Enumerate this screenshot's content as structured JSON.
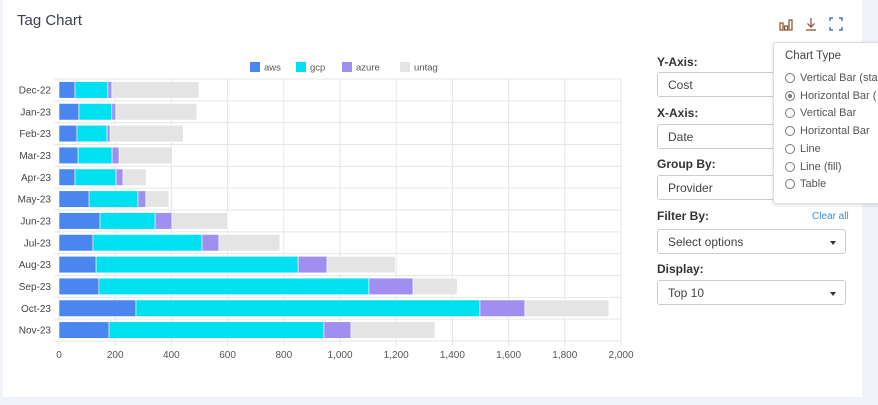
{
  "header": {
    "title": "Tag Chart",
    "icons": [
      "bar-chart-icon",
      "download-icon",
      "fullscreen-icon"
    ]
  },
  "controls": {
    "y_axis": {
      "label": "Y-Axis:",
      "value": "Cost"
    },
    "x_axis": {
      "label": "X-Axis:",
      "value": "Date"
    },
    "group_by": {
      "label": "Group By:",
      "value": "Provider"
    },
    "filter_by": {
      "label": "Filter By:",
      "value": "Select options",
      "clear": "Clear all"
    },
    "display": {
      "label": "Display:",
      "value": "Top 10"
    }
  },
  "chart_type_menu": {
    "title": "Chart Type",
    "options": [
      {
        "label": "Vertical Bar (sta",
        "selected": false
      },
      {
        "label": "Horizontal Bar (",
        "selected": true
      },
      {
        "label": "Vertical Bar",
        "selected": false
      },
      {
        "label": "Horizontal Bar",
        "selected": false
      },
      {
        "label": "Line",
        "selected": false
      },
      {
        "label": "Line (fill)",
        "selected": false
      },
      {
        "label": "Table",
        "selected": false
      }
    ]
  },
  "chart_data": {
    "type": "bar",
    "orientation": "horizontal",
    "stacked": true,
    "categories": [
      "Dec-22",
      "Jan-23",
      "Feb-23",
      "Mar-23",
      "Apr-23",
      "May-23",
      "Jun-23",
      "Jul-23",
      "Aug-23",
      "Sep-23",
      "Oct-23",
      "Nov-23"
    ],
    "series": [
      {
        "name": "aws",
        "color": "#4a86f0",
        "values": [
          57,
          71,
          64,
          68,
          57,
          107,
          146,
          121,
          132,
          142,
          274,
          178
        ]
      },
      {
        "name": "gcp",
        "color": "#00e0f0",
        "values": [
          117,
          117,
          107,
          121,
          146,
          174,
          196,
          388,
          719,
          961,
          1224,
          765
        ]
      },
      {
        "name": "azure",
        "color": "#a08ef0",
        "values": [
          14,
          14,
          11,
          25,
          25,
          28,
          60,
          60,
          103,
          157,
          160,
          96
        ]
      },
      {
        "name": "untag",
        "color": "#e4e4e4",
        "values": [
          310,
          288,
          260,
          189,
          82,
          82,
          199,
          217,
          242,
          157,
          299,
          299
        ]
      }
    ],
    "xlim": [
      0,
      2000
    ],
    "xticks": [
      "0",
      "200",
      "400",
      "600",
      "800",
      "1,000",
      "1,200",
      "1,400",
      "1,600",
      "1,800",
      "2,000"
    ],
    "grid": true,
    "legend": "top-center"
  }
}
